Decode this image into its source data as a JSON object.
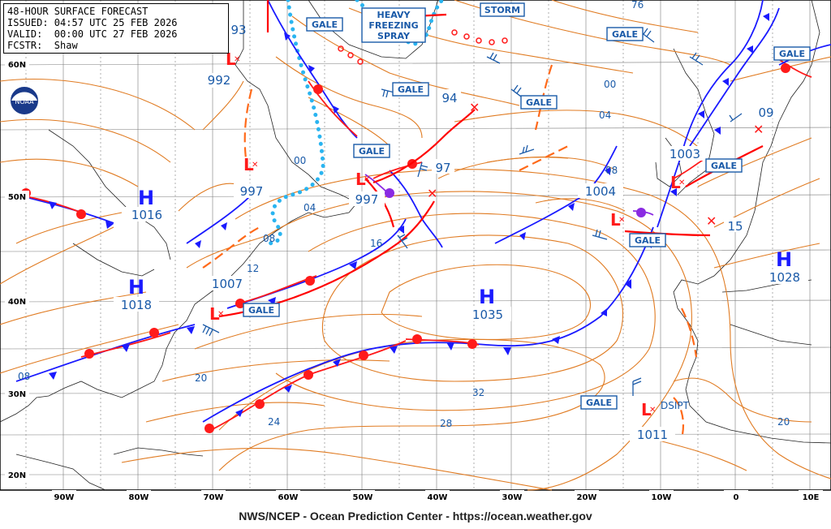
{
  "header": {
    "line1": "48-HOUR SURFACE FORECAST",
    "line2": "ISSUED: 04:57 UTC 25 FEB 2026",
    "line3": "VALID:  00:00 UTC 27 FEB 2026",
    "line4": "FCSTR:  Shaw"
  },
  "footer": "NWS/NCEP - Ocean Prediction Center - https://ocean.weather.gov",
  "logo": {
    "name": "noaa-logo",
    "text": "NOAA"
  },
  "colors": {
    "high": "#1a1aff",
    "low": "#ff1a1a",
    "isobar": "#e07b22",
    "warning": "#1a5aa8",
    "ice": "#2ab4f0"
  },
  "lon_labels": [
    "90W",
    "80W",
    "70W",
    "60W",
    "50W",
    "40W",
    "30W",
    "20W",
    "10W",
    "0",
    "10E"
  ],
  "lat_labels": [
    "60N",
    "50N",
    "40N",
    "30N",
    "20N"
  ],
  "highs": [
    {
      "symbol": "H",
      "value": "1016"
    },
    {
      "symbol": "H",
      "value": "1018"
    },
    {
      "symbol": "H",
      "value": "1035"
    },
    {
      "symbol": "H",
      "value": "1028"
    }
  ],
  "lows": [
    {
      "value": "992"
    },
    {
      "value": "997"
    },
    {
      "value": "997"
    },
    {
      "value": "1007"
    },
    {
      "value": "1004"
    },
    {
      "value": "1003"
    },
    {
      "value": "1011",
      "note": "DSIPT"
    }
  ],
  "pressure_labels": [
    "93",
    "94",
    "97",
    "15",
    "09"
  ],
  "isobar_labels": [
    "00",
    "04",
    "08",
    "12",
    "16",
    "20",
    "24",
    "28",
    "32",
    "00",
    "04",
    "08",
    "20",
    "76",
    "08"
  ],
  "warnings": {
    "gale": "GALE",
    "storm": "STORM",
    "heavy_freezing_spray": [
      "HEAVY",
      "FREEZING",
      "SPRAY"
    ]
  }
}
